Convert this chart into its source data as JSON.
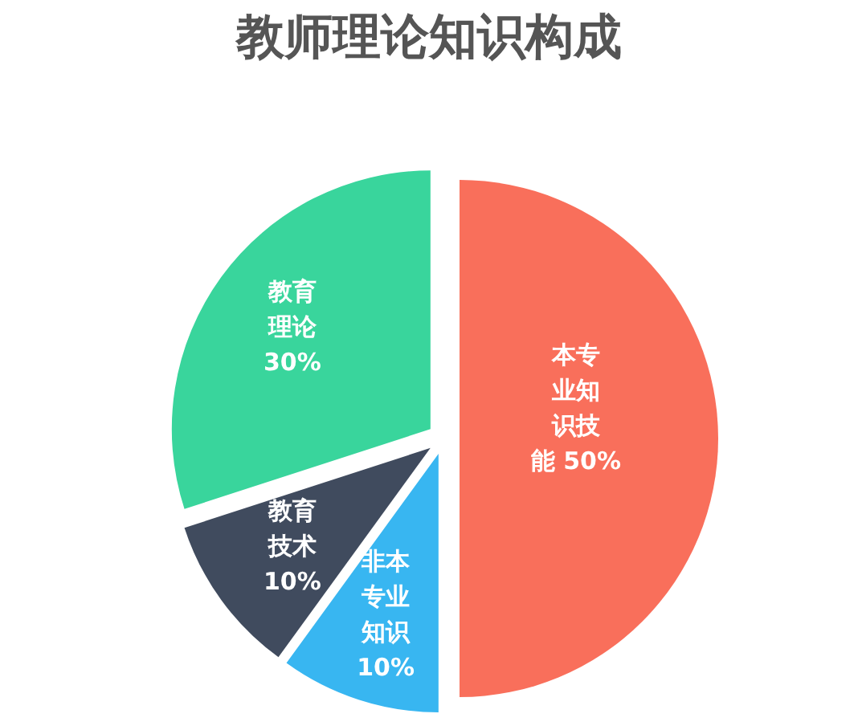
{
  "chart_data": {
    "type": "pie",
    "title": "教师理论知识构成",
    "categories": [
      "本专业知识技能",
      "非本专业知识",
      "教育技术",
      "教育理论"
    ],
    "values": [
      50,
      10,
      10,
      30
    ],
    "colors": [
      "#f96f5b",
      "#38b6f1",
      "#404b5e",
      "#39d59c"
    ],
    "value_labels": [
      "50%",
      "10%",
      "10%",
      "30%"
    ]
  }
}
